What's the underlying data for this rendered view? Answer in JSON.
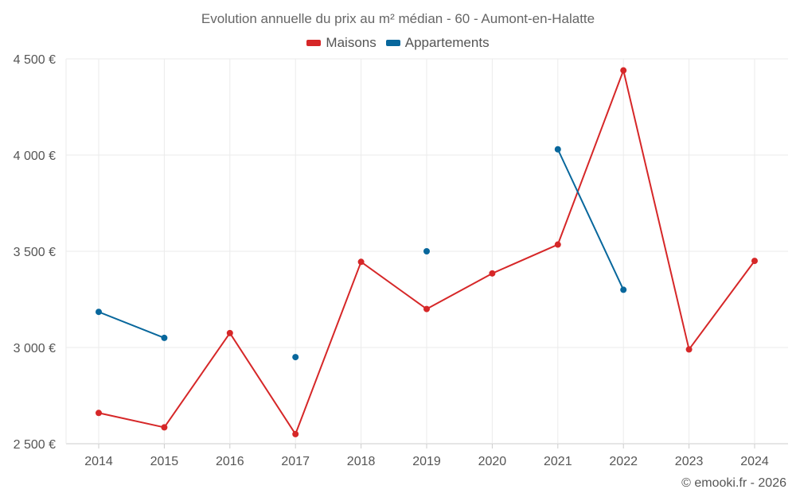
{
  "chart_data": {
    "type": "line",
    "title": "Evolution annuelle du prix au m² médian - 60 - Aumont-en-Halatte",
    "xlabel": "",
    "ylabel": "",
    "ylim": [
      2500,
      4500
    ],
    "yticks": [
      2500,
      3000,
      3500,
      4000,
      4500
    ],
    "ytick_labels": [
      "2 500 €",
      "3 000 €",
      "3 500 €",
      "4 000 €",
      "4 500 €"
    ],
    "categories": [
      "2014",
      "2015",
      "2016",
      "2017",
      "2018",
      "2019",
      "2020",
      "2021",
      "2022",
      "2023",
      "2024"
    ],
    "grid": true,
    "legend_position": "top-center",
    "series": [
      {
        "name": "Maisons",
        "color": "#d62728",
        "values": [
          2660,
          2585,
          3075,
          2550,
          3445,
          3200,
          3385,
          3535,
          4440,
          2990,
          3450
        ]
      },
      {
        "name": "Appartements",
        "color": "#08679c",
        "values": [
          3185,
          3050,
          null,
          2950,
          null,
          3500,
          null,
          4030,
          3300,
          null,
          null
        ]
      }
    ]
  },
  "credit": "© emooki.fr - 2026"
}
